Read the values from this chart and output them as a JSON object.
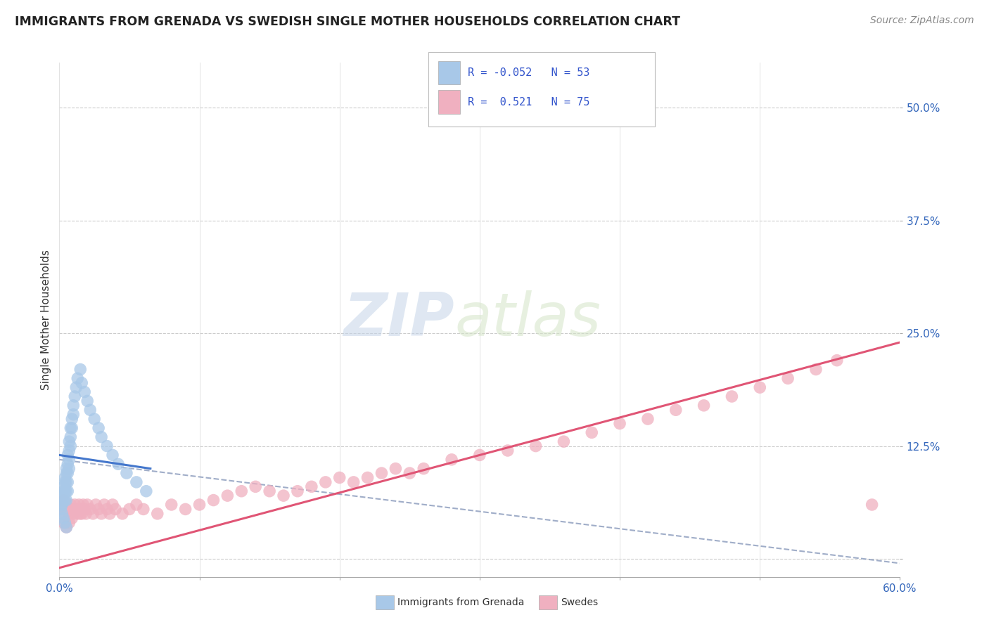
{
  "title": "IMMIGRANTS FROM GRENADA VS SWEDISH SINGLE MOTHER HOUSEHOLDS CORRELATION CHART",
  "source": "Source: ZipAtlas.com",
  "ylabel": "Single Mother Households",
  "xlim": [
    0.0,
    0.6
  ],
  "ylim": [
    -0.02,
    0.55
  ],
  "xticks": [
    0.0,
    0.1,
    0.2,
    0.3,
    0.4,
    0.5,
    0.6
  ],
  "xticklabels": [
    "0.0%",
    "",
    "",
    "",
    "",
    "",
    "60.0%"
  ],
  "ytick_positions": [
    0.0,
    0.125,
    0.25,
    0.375,
    0.5
  ],
  "ytick_labels": [
    "",
    "12.5%",
    "25.0%",
    "37.5%",
    "50.0%"
  ],
  "legend_R1": "-0.052",
  "legend_N1": "53",
  "legend_R2": "0.521",
  "legend_N2": "75",
  "blue_color": "#a8c8e8",
  "pink_color": "#f0b0c0",
  "trend_blue": "#4477cc",
  "trend_pink": "#e05575",
  "watermark": "ZIPatlas",
  "blue_scatter_x": [
    0.001,
    0.002,
    0.002,
    0.003,
    0.003,
    0.003,
    0.004,
    0.004,
    0.004,
    0.004,
    0.005,
    0.005,
    0.005,
    0.005,
    0.005,
    0.006,
    0.006,
    0.006,
    0.006,
    0.006,
    0.007,
    0.007,
    0.007,
    0.007,
    0.008,
    0.008,
    0.008,
    0.009,
    0.009,
    0.01,
    0.01,
    0.011,
    0.012,
    0.013,
    0.015,
    0.016,
    0.018,
    0.02,
    0.022,
    0.025,
    0.028,
    0.03,
    0.034,
    0.038,
    0.042,
    0.048,
    0.055,
    0.062,
    0.001,
    0.002,
    0.003,
    0.004,
    0.005
  ],
  "blue_scatter_y": [
    0.06,
    0.07,
    0.06,
    0.08,
    0.075,
    0.065,
    0.09,
    0.085,
    0.075,
    0.065,
    0.1,
    0.095,
    0.085,
    0.075,
    0.065,
    0.115,
    0.105,
    0.095,
    0.085,
    0.075,
    0.13,
    0.12,
    0.11,
    0.1,
    0.145,
    0.135,
    0.125,
    0.155,
    0.145,
    0.17,
    0.16,
    0.18,
    0.19,
    0.2,
    0.21,
    0.195,
    0.185,
    0.175,
    0.165,
    0.155,
    0.145,
    0.135,
    0.125,
    0.115,
    0.105,
    0.095,
    0.085,
    0.075,
    0.055,
    0.05,
    0.045,
    0.04,
    0.035
  ],
  "pink_scatter_x": [
    0.001,
    0.002,
    0.003,
    0.004,
    0.005,
    0.006,
    0.007,
    0.008,
    0.009,
    0.01,
    0.011,
    0.012,
    0.013,
    0.014,
    0.015,
    0.016,
    0.017,
    0.018,
    0.019,
    0.02,
    0.022,
    0.024,
    0.026,
    0.028,
    0.03,
    0.032,
    0.034,
    0.036,
    0.038,
    0.04,
    0.045,
    0.05,
    0.055,
    0.06,
    0.07,
    0.08,
    0.09,
    0.1,
    0.11,
    0.12,
    0.13,
    0.14,
    0.15,
    0.16,
    0.17,
    0.18,
    0.19,
    0.2,
    0.21,
    0.22,
    0.23,
    0.24,
    0.25,
    0.26,
    0.28,
    0.3,
    0.32,
    0.34,
    0.36,
    0.38,
    0.4,
    0.42,
    0.44,
    0.46,
    0.48,
    0.5,
    0.52,
    0.54,
    0.555,
    0.003,
    0.005,
    0.007,
    0.009,
    0.015,
    0.58
  ],
  "pink_scatter_y": [
    0.06,
    0.055,
    0.065,
    0.05,
    0.06,
    0.055,
    0.05,
    0.06,
    0.055,
    0.05,
    0.06,
    0.055,
    0.05,
    0.06,
    0.055,
    0.05,
    0.06,
    0.055,
    0.05,
    0.06,
    0.055,
    0.05,
    0.06,
    0.055,
    0.05,
    0.06,
    0.055,
    0.05,
    0.06,
    0.055,
    0.05,
    0.055,
    0.06,
    0.055,
    0.05,
    0.06,
    0.055,
    0.06,
    0.065,
    0.07,
    0.075,
    0.08,
    0.075,
    0.07,
    0.075,
    0.08,
    0.085,
    0.09,
    0.085,
    0.09,
    0.095,
    0.1,
    0.095,
    0.1,
    0.11,
    0.115,
    0.12,
    0.125,
    0.13,
    0.14,
    0.15,
    0.155,
    0.165,
    0.17,
    0.18,
    0.19,
    0.2,
    0.21,
    0.22,
    0.04,
    0.035,
    0.04,
    0.045,
    0.05,
    0.06
  ],
  "blue_trend_x": [
    0.0,
    0.065
  ],
  "blue_trend_y": [
    0.115,
    0.1
  ],
  "pink_trend_x": [
    0.0,
    0.6
  ],
  "pink_trend_y": [
    -0.01,
    0.24
  ],
  "dashed_trend_x": [
    0.0,
    0.6
  ],
  "dashed_trend_y": [
    0.11,
    -0.005
  ]
}
